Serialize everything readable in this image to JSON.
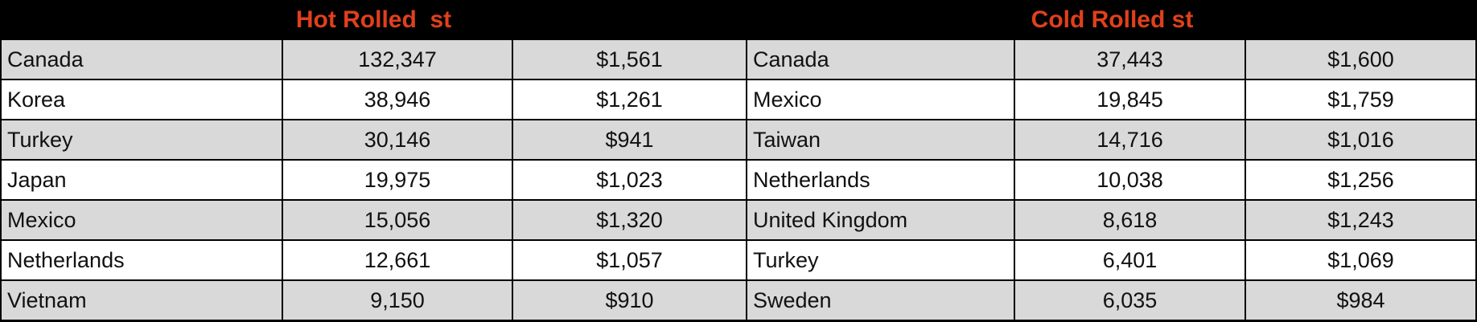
{
  "hot_rolled": {
    "title": "Hot Rolled  st",
    "rows": [
      [
        "Canada",
        "132,347",
        "$1,561"
      ],
      [
        "Korea",
        "38,946",
        "$1,261"
      ],
      [
        "Turkey",
        "30,146",
        "$941"
      ],
      [
        "Japan",
        "19,975",
        "$1,023"
      ],
      [
        "Mexico",
        "15,056",
        "$1,320"
      ],
      [
        "Netherlands",
        "12,661",
        "$1,057"
      ],
      [
        "Vietnam",
        "9,150",
        "$910"
      ]
    ]
  },
  "cold_rolled": {
    "title": "Cold Rolled st",
    "rows": [
      [
        "Canada",
        "37,443",
        "$1,600"
      ],
      [
        "Mexico",
        "19,845",
        "$1,759"
      ],
      [
        "Taiwan",
        "14,716",
        "$1,016"
      ],
      [
        "Netherlands",
        "10,038",
        "$1,256"
      ],
      [
        "United Kingdom",
        "8,618",
        "$1,243"
      ],
      [
        "Turkey",
        "6,401",
        "$1,069"
      ],
      [
        "Sweden",
        "6,035",
        "$984"
      ]
    ]
  }
}
